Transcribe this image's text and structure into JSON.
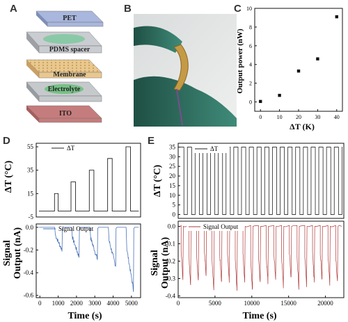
{
  "panels": {
    "a": "A",
    "b": "B",
    "c": "C",
    "d": "D",
    "e": "E"
  },
  "layers": [
    {
      "label": "PET",
      "color": "#a9b6dd"
    },
    {
      "label": "PDMS spacer",
      "color": "#c9ccd0"
    },
    {
      "label": "Membrane",
      "color": "#e9c88f"
    },
    {
      "label": "Electrolyte",
      "color": "#c6c9cc"
    },
    {
      "label": "ITO",
      "color": "#c57c7c"
    }
  ],
  "chart_data": [
    {
      "id": "C",
      "type": "scatter",
      "xlabel": "ΔT (K)",
      "ylabel": "Output power (nW)",
      "x": [
        0,
        10,
        20,
        30,
        40
      ],
      "y": [
        0.05,
        0.7,
        3.3,
        4.6,
        9.1
      ],
      "xlim": [
        -3,
        43
      ],
      "ylim": [
        -1,
        10
      ],
      "xticks": [
        "0",
        "10",
        "20",
        "30",
        "40"
      ],
      "yticks": [
        "0",
        "2",
        "4",
        "6",
        "8",
        "10"
      ],
      "color": "#111111"
    },
    {
      "id": "D-top",
      "type": "line",
      "xlabel": "",
      "ylabel": "ΔT (°C)",
      "legend": "ΔT",
      "pulses": [
        {
          "start": 800,
          "end": 1000,
          "value": 15
        },
        {
          "start": 1700,
          "end": 1950,
          "value": 25
        },
        {
          "start": 2700,
          "end": 2950,
          "value": 35
        },
        {
          "start": 3700,
          "end": 3950,
          "value": 45
        },
        {
          "start": 4700,
          "end": 4950,
          "value": 55
        }
      ],
      "baseline": 0,
      "xlim": [
        -200,
        5500
      ],
      "ylim": [
        -5,
        58
      ],
      "yticks": [
        "-5",
        "15",
        "35",
        "55"
      ],
      "color": "#222222"
    },
    {
      "id": "D-bottom",
      "type": "line",
      "xlabel": "Time (s)",
      "ylabel": "Signal Output (nA)",
      "legend": "Signal Output",
      "x_pulses": [
        850,
        1780,
        2780,
        3780,
        4750
      ],
      "amplitudes": [
        -0.2,
        -0.26,
        -0.28,
        -0.34,
        -0.55
      ],
      "xlim": [
        -200,
        5500
      ],
      "ylim": [
        -0.62,
        0.03
      ],
      "xticks": [
        "0",
        "1000",
        "2000",
        "3000",
        "4000",
        "5000"
      ],
      "yticks": [
        "0.0",
        "-0.2",
        "-0.4",
        "-0.6"
      ],
      "color": "#4a72b8"
    },
    {
      "id": "E-top",
      "type": "line",
      "xlabel": "",
      "ylabel": "ΔT (°C)",
      "legend": "ΔT",
      "period": 1050,
      "duty": 0.55,
      "high": 35,
      "low": 0,
      "xlim": [
        0,
        22500
      ],
      "ylim": [
        -2,
        37
      ],
      "yticks": [
        "0",
        "5",
        "10",
        "15",
        "20",
        "25",
        "30",
        "35"
      ],
      "color": "#222222"
    },
    {
      "id": "E-bottom",
      "type": "line",
      "xlabel": "Time (s)",
      "ylabel": "Signal Output (nA)",
      "legend": "Signal Output",
      "period": 1050,
      "amplitude_range": [
        -0.28,
        -0.38
      ],
      "xlim": [
        0,
        22500
      ],
      "ylim": [
        -0.41,
        0.03
      ],
      "xticks": [
        "0",
        "5000",
        "10000",
        "15000",
        "20000"
      ],
      "yticks": [
        "0.0",
        "-0.1",
        "-0.2",
        "-0.3",
        "-0.4"
      ],
      "color": "#b03a3a"
    }
  ]
}
